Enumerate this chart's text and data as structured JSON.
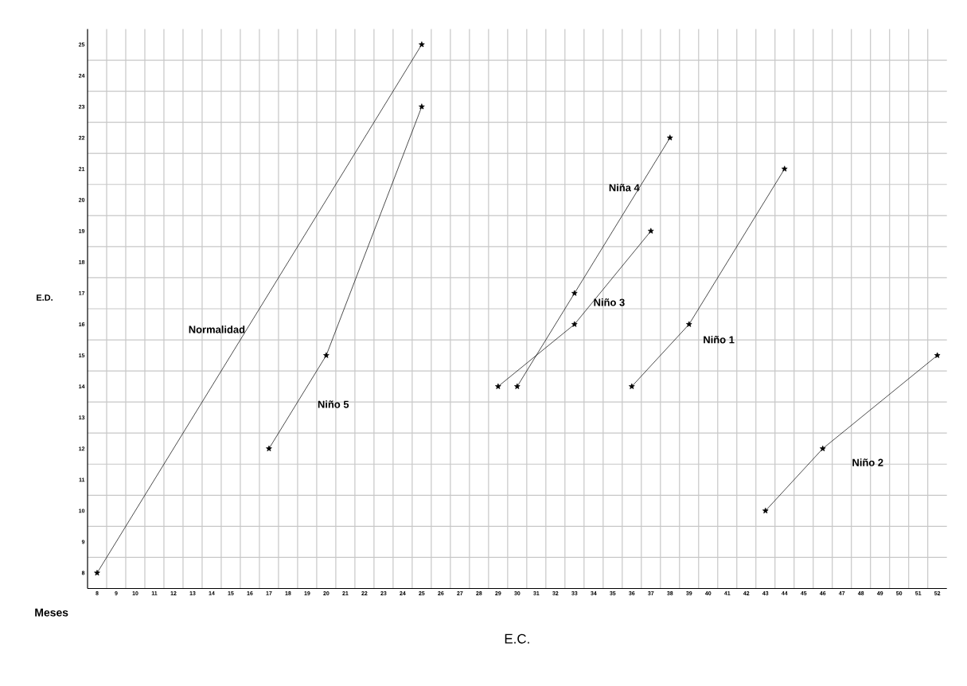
{
  "chart_data": {
    "type": "line",
    "xlabel": "E.C.",
    "ylabel": "E.D.",
    "annotations": [
      "Meses"
    ],
    "xlim": [
      7.5,
      52.5
    ],
    "ylim": [
      7.5,
      25.5
    ],
    "xticks": [
      8,
      9,
      10,
      11,
      12,
      13,
      14,
      15,
      16,
      17,
      18,
      19,
      20,
      21,
      22,
      23,
      24,
      25,
      26,
      27,
      28,
      29,
      30,
      31,
      32,
      33,
      34,
      35,
      36,
      37,
      38,
      39,
      40,
      41,
      42,
      43,
      44,
      45,
      46,
      47,
      48,
      49,
      50,
      51,
      52
    ],
    "yticks": [
      8,
      9,
      10,
      11,
      12,
      13,
      14,
      15,
      16,
      17,
      18,
      19,
      20,
      21,
      22,
      23,
      24,
      25
    ],
    "grid": true,
    "marker": "star",
    "line_style": "solid",
    "series": [
      {
        "name": "Normalidad",
        "color": "#000000",
        "x": [
          8,
          25
        ],
        "values": [
          8,
          25
        ]
      },
      {
        "name": "Niño 5",
        "color": "#000000",
        "x": [
          17,
          20,
          25
        ],
        "values": [
          12,
          15,
          23
        ]
      },
      {
        "name": "Niño 3",
        "color": "#000000",
        "x": [
          29,
          33,
          37
        ],
        "values": [
          14,
          16,
          19
        ]
      },
      {
        "name": "Niña 4",
        "color": "#000000",
        "x": [
          30,
          33,
          38
        ],
        "values": [
          14,
          17,
          22
        ]
      },
      {
        "name": "Niño 1",
        "color": "#000000",
        "x": [
          36,
          39,
          44
        ],
        "values": [
          14,
          16,
          21
        ]
      },
      {
        "name": "Niño 2",
        "color": "#000000",
        "x": [
          43,
          46,
          52
        ],
        "values": [
          10,
          12,
          15
        ]
      }
    ]
  }
}
